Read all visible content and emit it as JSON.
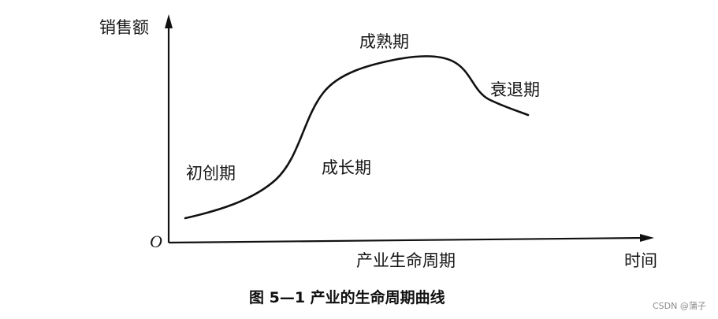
{
  "figure": {
    "y_axis_label": "销售额",
    "x_axis_label": "时间",
    "origin_label": "O",
    "x_axis_caption": "产业生命周期",
    "caption": "图 5—1 产业的生命周期曲线",
    "stages": {
      "introduction": "初创期",
      "growth": "成长期",
      "maturity": "成熟期",
      "decline": "衰退期"
    }
  },
  "watermark": "CSDN @蒲子"
}
